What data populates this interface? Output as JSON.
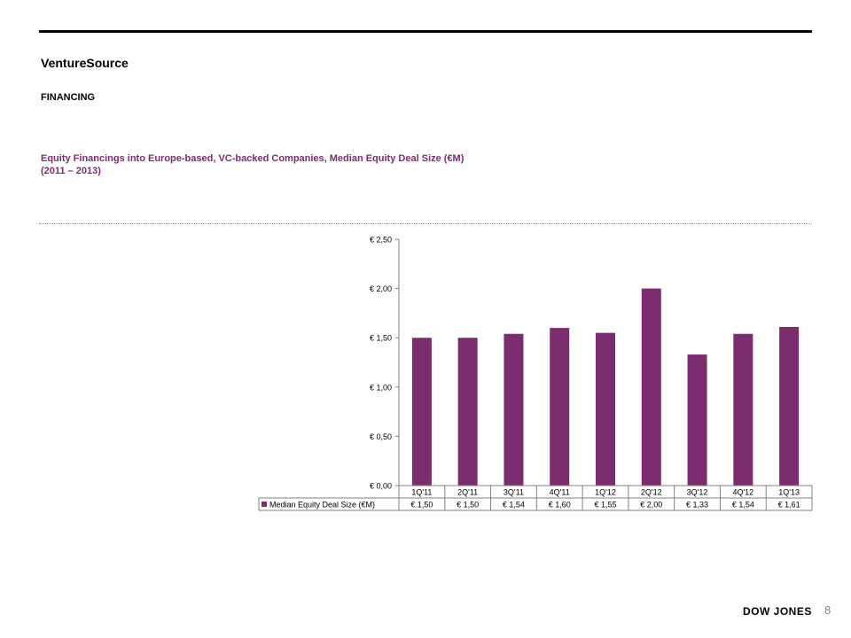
{
  "header": {
    "brand": "VentureSource",
    "section": "FINANCING",
    "chart_title_line1": "Equity Financings into Europe-based, VC-backed Companies, Median Equity Deal Size (€M)",
    "chart_title_line2": "(2011 – 2013)"
  },
  "footer": {
    "brand": "DOW JONES",
    "page_number": "8"
  },
  "colors": {
    "bar": "#7b2d70",
    "title": "#7b2d70",
    "grid": "#bfbfbf"
  },
  "chart_data": {
    "type": "bar",
    "categories": [
      "1Q'11",
      "2Q'11",
      "3Q'11",
      "4Q'11",
      "1Q'12",
      "2Q'12",
      "3Q'12",
      "4Q'12",
      "1Q'13"
    ],
    "series": [
      {
        "name": "Median Equity Deal Size (€M)",
        "values": [
          1.5,
          1.5,
          1.54,
          1.6,
          1.55,
          2.0,
          1.33,
          1.54,
          1.61
        ]
      }
    ],
    "value_labels": [
      "€ 1,50",
      "€ 1,50",
      "€ 1,54",
      "€ 1,60",
      "€ 1,55",
      "€ 2,00",
      "€ 1,33",
      "€ 1,54",
      "€ 1,61"
    ],
    "y_ticks": [
      0,
      0.5,
      1.0,
      1.5,
      2.0,
      2.5
    ],
    "y_tick_labels": [
      "€ 0,00",
      "€ 0,50",
      "€ 1,00",
      "€ 1,50",
      "€ 2,00",
      "€ 2,50"
    ],
    "ylim": [
      0,
      2.5
    ],
    "grid": false,
    "legend": "data-table"
  }
}
